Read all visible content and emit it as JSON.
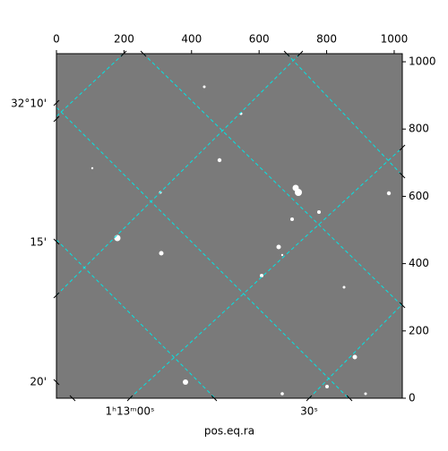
{
  "chart_data": {
    "type": "image",
    "xlabel": "pos.eq.ra",
    "xlim": [
      0,
      1024
    ],
    "ylim": [
      0,
      1024
    ],
    "xticks": [
      0,
      200,
      400,
      600,
      800,
      1000
    ],
    "yticks": [
      0,
      200,
      400,
      600,
      800,
      1000
    ],
    "left_tick_labels": [
      "32°10'",
      "15'",
      "20'"
    ],
    "bottom_tick_labels": [
      "1ʰ13ᵐ00ˢ",
      "30ˢ"
    ],
    "grid_color": "#00e5e5"
  }
}
